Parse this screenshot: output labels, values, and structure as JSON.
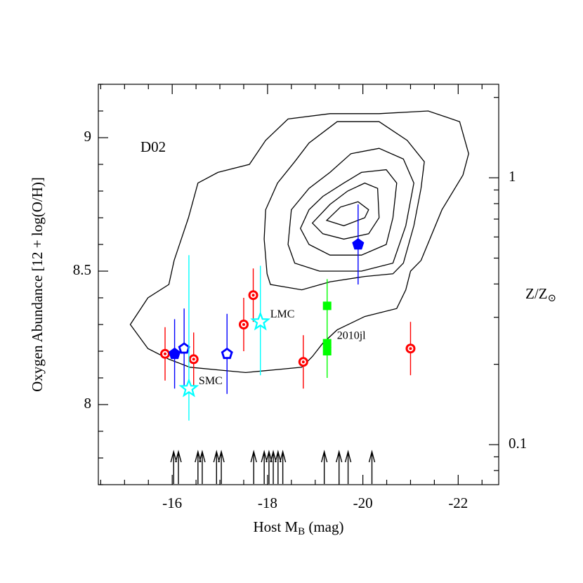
{
  "chart_data": {
    "type": "scatter",
    "xlabel": [
      "Host M",
      "B",
      " (mag)"
    ],
    "ylabel": "Oxygen Abundance [12 + log(O/H)]",
    "y2label": [
      "Z/Z",
      "⊙"
    ],
    "annotations": [
      "D02"
    ],
    "xlim": [
      -14.45,
      -22.85
    ],
    "ylim": [
      7.7,
      9.2
    ],
    "y2lim": [
      0.0708,
      2.24
    ],
    "y2log": true,
    "xticks": [
      -16,
      -18,
      -20,
      -22
    ],
    "xminorticks": [
      -14.5,
      -15,
      -15.5,
      -16.5,
      -17,
      -17.5,
      -18.5,
      -19,
      -19.5,
      -20.5,
      -21,
      -21.5,
      -22.5
    ],
    "yticks": [
      8,
      8.5,
      9
    ],
    "yminorticks": [
      7.7,
      7.8,
      7.9,
      8.1,
      8.2,
      8.3,
      8.4,
      8.6,
      8.7,
      8.8,
      8.9,
      9.1,
      9.2
    ],
    "y2ticks": [
      0.1,
      1
    ],
    "y2minorticks": [
      0.08,
      0.09,
      0.2,
      0.3,
      0.4,
      0.5,
      0.6,
      0.7,
      0.8,
      0.9,
      2
    ],
    "grid": false,
    "contour_color": "#000000",
    "contours": [
      {
        "x": [
          -15.12,
          -15.49,
          -15.93,
          -16.04,
          -16.34,
          -16.54,
          -16.96,
          -17.62,
          -17.96,
          -18.43,
          -19.31,
          -20.34,
          -21.37,
          -22.03,
          -22.22,
          -22.1,
          -21.66,
          -21.22,
          -21.0,
          -20.9,
          -20.71,
          -20.04,
          -19.46,
          -19.16,
          -18.94,
          -18.72,
          -18.13,
          -17.54,
          -16.96,
          -16.37,
          -15.93,
          -15.49
        ],
        "y": [
          8.3,
          8.4,
          8.45,
          8.54,
          8.7,
          8.83,
          8.87,
          8.9,
          8.99,
          9.07,
          9.09,
          9.09,
          9.1,
          9.06,
          8.94,
          8.86,
          8.73,
          8.54,
          8.5,
          8.43,
          8.36,
          8.33,
          8.28,
          8.23,
          8.18,
          8.14,
          8.13,
          8.12,
          8.13,
          8.14,
          8.17,
          8.21
        ]
      },
      {
        "x": [
          -17.96,
          -17.93,
          -17.99,
          -18.06,
          -18.72,
          -19.31,
          -20.04,
          -20.63,
          -20.85,
          -21.07,
          -21.22,
          -21.29,
          -20.93,
          -20.34,
          -19.46,
          -18.87,
          -18.57,
          -18.21
        ],
        "y": [
          8.73,
          8.62,
          8.49,
          8.45,
          8.43,
          8.46,
          8.48,
          8.49,
          8.53,
          8.67,
          8.81,
          8.91,
          8.99,
          9.06,
          9.06,
          8.98,
          8.91,
          8.83
        ]
      },
      {
        "x": [
          -18.43,
          -18.57,
          -19.09,
          -19.97,
          -20.63,
          -20.9,
          -21.07,
          -20.85,
          -20.34,
          -19.75,
          -19.31,
          -18.87,
          -18.5
        ],
        "y": [
          8.6,
          8.53,
          8.5,
          8.5,
          8.53,
          8.67,
          8.83,
          8.92,
          8.96,
          8.94,
          8.87,
          8.81,
          8.73
        ]
      },
      {
        "x": [
          -18.69,
          -18.87,
          -19.31,
          -19.97,
          -20.49,
          -20.63,
          -20.71,
          -20.49,
          -19.97,
          -19.6,
          -19.16,
          -18.87
        ],
        "y": [
          8.66,
          8.6,
          8.56,
          8.56,
          8.6,
          8.7,
          8.83,
          8.88,
          8.87,
          8.83,
          8.78,
          8.73
        ]
      },
      {
        "x": [
          -18.94,
          -19.16,
          -19.6,
          -20.12,
          -20.34,
          -20.31,
          -20.04,
          -19.68,
          -19.31
        ],
        "y": [
          8.68,
          8.64,
          8.62,
          8.64,
          8.7,
          8.81,
          8.83,
          8.8,
          8.75
        ]
      },
      {
        "x": [
          -19.24,
          -19.6,
          -20.04,
          -20.12,
          -19.9,
          -19.53
        ],
        "y": [
          8.69,
          8.67,
          8.7,
          8.73,
          8.76,
          8.74
        ]
      }
    ],
    "series": [
      {
        "marker": "circle-dot",
        "color": "#ff0000",
        "x": [
          -15.85,
          -16.45,
          -17.5,
          -17.7,
          -18.75,
          -21.0
        ],
        "y": [
          8.19,
          8.17,
          8.3,
          8.41,
          8.16,
          8.21
        ],
        "yerr_low": [
          0.1,
          0.1,
          0.1,
          0.1,
          0.1,
          0.1
        ],
        "yerr_high": [
          0.1,
          0.1,
          0.1,
          0.1,
          0.1,
          0.1
        ]
      },
      {
        "marker": "pentagon",
        "color": "#0000ff",
        "x": [
          -16.05,
          -19.9
        ],
        "y": [
          8.19,
          8.6
        ],
        "yerr_low": [
          0.13,
          0.15
        ],
        "yerr_high": [
          0.13,
          0.15
        ]
      },
      {
        "marker": "pentagon-open",
        "color": "#0000ff",
        "x": [
          -16.25,
          -17.15
        ],
        "y": [
          8.21,
          8.19
        ],
        "yerr_low": [
          0.15,
          0.15
        ],
        "yerr_high": [
          0.15,
          0.15
        ]
      },
      {
        "marker": "star-open",
        "color": "#00ffff",
        "x": [
          -16.35,
          -17.85
        ],
        "y": [
          8.06,
          8.31
        ],
        "yerr_low": [
          0.12,
          0.2
        ],
        "yerr_high": [
          0.5,
          0.21
        ],
        "point_labels": [
          "SMC",
          "LMC"
        ]
      },
      {
        "marker": "square",
        "color": "#00ff00",
        "x": [
          -19.25,
          -19.25,
          -19.25
        ],
        "y": [
          8.37,
          8.23,
          8.2
        ],
        "yerr_low": [
          null,
          0.13,
          null
        ],
        "yerr_high": [
          null,
          0.24,
          null
        ],
        "point_labels": [
          null,
          "2010jl",
          null
        ]
      },
      {
        "marker": "arrow",
        "color": "#000000",
        "x": [
          -16.03,
          -16.13,
          -16.54,
          -16.63,
          -16.93,
          -17.03,
          -17.71,
          -17.93,
          -18.03,
          -18.12,
          -18.22,
          -18.32,
          -19.19,
          -19.5,
          -19.69,
          -20.19
        ]
      }
    ]
  }
}
